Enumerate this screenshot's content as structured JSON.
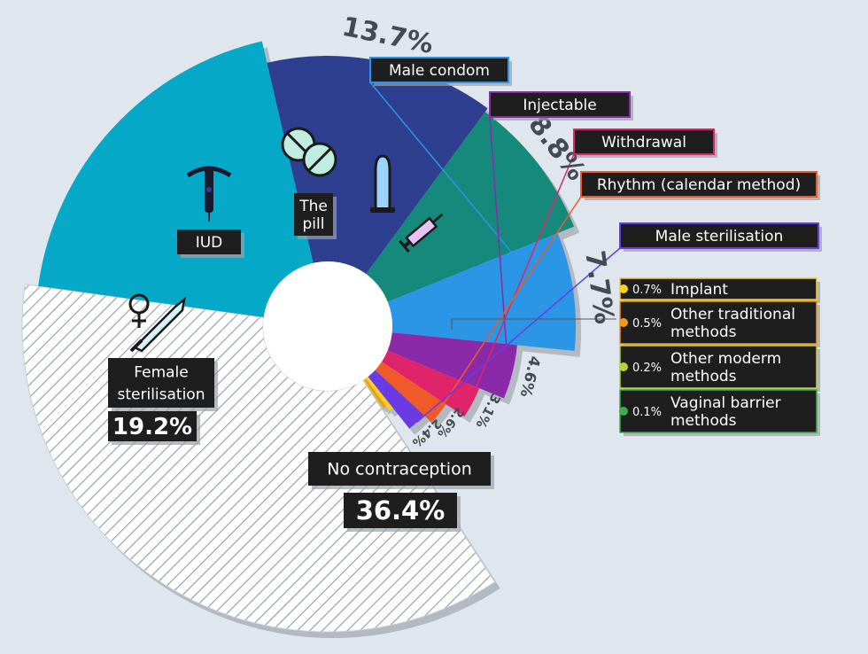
{
  "chart_data": {
    "type": "pie",
    "title": "",
    "slices": [
      {
        "key": "iud",
        "label": "IUD",
        "value": 13.7,
        "value_label": "13.7%",
        "color": "#2e3f8f"
      },
      {
        "key": "pill",
        "label": "The pill",
        "value": 8.8,
        "value_label": "8.8%",
        "color": "#15897c"
      },
      {
        "key": "condom",
        "label": "Male condom",
        "value": 7.7,
        "value_label": "7.7%",
        "color": "#2b95e6"
      },
      {
        "key": "injectable",
        "label": "Injectable",
        "value": 4.6,
        "value_label": "4.6%",
        "color": "#8a2aa8"
      },
      {
        "key": "withdrawal",
        "label": "Withdrawal",
        "value": 3.1,
        "value_label": "3.1%",
        "color": "#e0246a"
      },
      {
        "key": "rhythm",
        "label": "Rhythm (calendar method)",
        "value": 2.6,
        "value_label": "2.6%",
        "color": "#f05a28"
      },
      {
        "key": "male_ster",
        "label": "Male sterilisation",
        "value": 2.4,
        "value_label": "2.4%",
        "color": "#6a3be4"
      },
      {
        "key": "implant",
        "label": "Implant",
        "value": 0.7,
        "value_label": "0.7%",
        "color": "#f7d21a"
      },
      {
        "key": "other_trad",
        "label": "Other traditional methods",
        "value": 0.5,
        "value_label": "0.5%",
        "color": "#f39a1c"
      },
      {
        "key": "other_mod",
        "label": "Other moderm methods",
        "value": 0.2,
        "value_label": "0.2%",
        "color": "#b8d23a"
      },
      {
        "key": "vaginal",
        "label": "Vaginal barrier methods",
        "value": 0.1,
        "value_label": "0.1%",
        "color": "#3fae49"
      },
      {
        "key": "none",
        "label": "No contraception",
        "value": 36.4,
        "value_label": "36.4%",
        "color": "#ffffff"
      },
      {
        "key": "female_ster",
        "label": "Female sterilisation",
        "value": 19.2,
        "value_label": "19.2%",
        "color": "#05a9c7"
      }
    ],
    "legend_small": [
      {
        "value_label": "0.7%",
        "label_lines": [
          "Implant"
        ],
        "color": "#f7d21a"
      },
      {
        "value_label": "0.5%",
        "label_lines": [
          "Other traditional",
          "methods"
        ],
        "color": "#f39a1c"
      },
      {
        "value_label": "0.2%",
        "label_lines": [
          "Other moderm",
          "methods"
        ],
        "color": "#b8d23a"
      },
      {
        "value_label": "0.1%",
        "label_lines": [
          "Vaginal barrier",
          "methods"
        ],
        "color": "#3fae49"
      }
    ],
    "label_lines": {
      "pill": [
        "The",
        "pill"
      ],
      "female_ster": [
        "Female",
        "sterilisation"
      ]
    },
    "icons": {
      "iud": "iud-icon",
      "pill": "pill-icon",
      "condom": "condom-icon",
      "injectable": "syringe-icon",
      "female_ster": "scalpel-icon"
    }
  }
}
